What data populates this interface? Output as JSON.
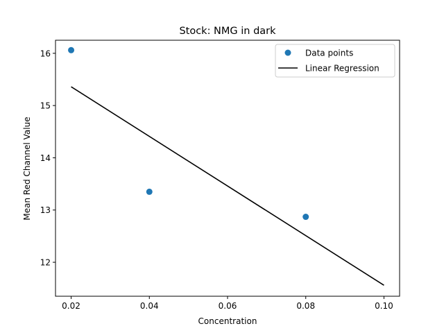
{
  "chart_data": {
    "type": "scatter",
    "title": "Stock: NMG in dark",
    "xlabel": "Concentration",
    "ylabel": "Mean Red Channel Value",
    "xlim": [
      0.016,
      0.104
    ],
    "ylim": [
      11.35,
      16.25
    ],
    "xticks": [
      0.02,
      0.04,
      0.06,
      0.08,
      0.1
    ],
    "xtick_labels": [
      "0.02",
      "0.04",
      "0.06",
      "0.08",
      "0.10"
    ],
    "yticks": [
      12,
      13,
      14,
      15,
      16
    ],
    "ytick_labels": [
      "12",
      "13",
      "14",
      "15",
      "16"
    ],
    "grid": false,
    "legend_position": "top-right",
    "series": [
      {
        "name": "Data points",
        "kind": "scatter",
        "color": "#1f77b4",
        "x": [
          0.02,
          0.04,
          0.08
        ],
        "y": [
          16.06,
          13.35,
          12.87
        ]
      },
      {
        "name": "Linear Regression",
        "kind": "line",
        "color": "#000000",
        "x": [
          0.02,
          0.1
        ],
        "y": [
          15.36,
          11.56
        ]
      }
    ]
  }
}
